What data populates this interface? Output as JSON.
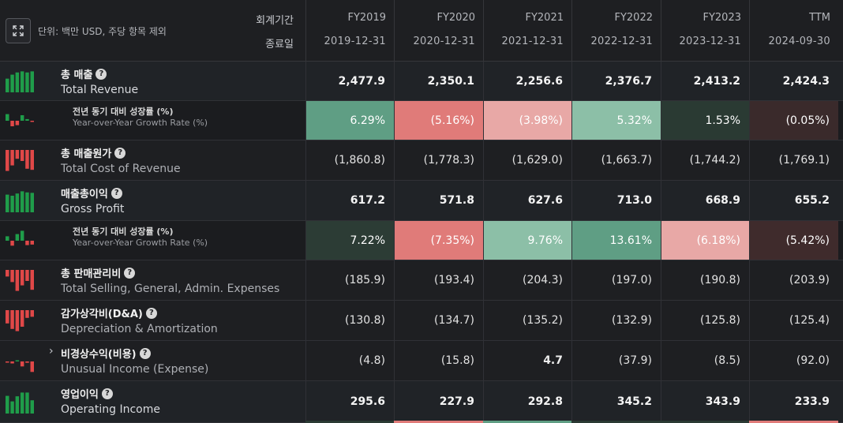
{
  "header": {
    "unit_note": "단위: 백만 USD, 주당 항목 제외",
    "period_label": "회계기간",
    "end_date_label": "종료일",
    "expand_icon": "expand-icon"
  },
  "columns": [
    {
      "fy": "FY2019",
      "date": "2019-12-31"
    },
    {
      "fy": "FY2020",
      "date": "2020-12-31"
    },
    {
      "fy": "FY2021",
      "date": "2021-12-31"
    },
    {
      "fy": "FY2022",
      "date": "2022-12-31"
    },
    {
      "fy": "FY2023",
      "date": "2023-12-31"
    },
    {
      "fy": "TTM",
      "date": "2024-09-30"
    }
  ],
  "rows": [
    {
      "ko": "총 매출",
      "en": "Total Revenue",
      "type": "main",
      "highlight": true,
      "help": true,
      "values": [
        "2,477.9",
        "2,350.1",
        "2,256.6",
        "2,376.7",
        "2,413.2",
        "2,424.3"
      ],
      "spark": [
        0.62,
        0.8,
        0.9,
        0.95,
        0.9,
        0.95
      ],
      "spark_color": "#1f9d4a"
    },
    {
      "ko": "전년 동기 대비 성장률 (%)",
      "en": "Year-over-Year Growth Rate (%)",
      "type": "sub",
      "values": [
        "6.29%",
        "(5.16%)",
        "(3.98%)",
        "5.32%",
        "1.53%",
        "(0.05%)"
      ],
      "bg": [
        "#5f9e84",
        "#e07b79",
        "#e8a8a6",
        "#8cbfa7",
        "#2a3a33",
        "#3a2a2b"
      ],
      "spark": [
        0.6,
        -0.5,
        -0.4,
        0.5,
        0.15,
        -0.05
      ],
      "spark_color": "mixed"
    },
    {
      "ko": "총 매출원가",
      "en": "Total Cost of Revenue",
      "type": "main",
      "highlight": false,
      "help": true,
      "values": [
        "(1,860.8)",
        "(1,778.3)",
        "(1,629.0)",
        "(1,663.7)",
        "(1,744.2)",
        "(1,769.1)"
      ],
      "spark": [
        -0.95,
        -0.7,
        -0.4,
        -0.5,
        -0.85,
        -0.9
      ],
      "spark_color": "#e04848"
    },
    {
      "ko": "매출총이익",
      "en": "Gross Profit",
      "type": "main",
      "highlight": true,
      "help": true,
      "values": [
        "617.2",
        "571.8",
        "627.6",
        "713.0",
        "668.9",
        "655.2"
      ],
      "spark": [
        0.8,
        0.75,
        0.85,
        0.95,
        0.9,
        0.88
      ],
      "spark_color": "#1f9d4a"
    },
    {
      "ko": "전년 동기 대비 성장률 (%)",
      "en": "Year-over-Year Growth Rate (%)",
      "type": "sub",
      "values": [
        "7.22%",
        "(7.35%)",
        "9.76%",
        "13.61%",
        "(6.18%)",
        "(5.42%)"
      ],
      "bg": [
        "#2c3c35",
        "#e07b79",
        "#8cbfa7",
        "#5f9e84",
        "#e8a8a6",
        "#3f2b2c"
      ],
      "spark": [
        0.4,
        -0.45,
        0.6,
        0.9,
        -0.4,
        -0.35
      ],
      "spark_color": "mixed"
    },
    {
      "ko": "총 판매관리비",
      "en": "Total Selling, General, Admin. Expenses",
      "type": "main",
      "highlight": false,
      "help": true,
      "values": [
        "(185.9)",
        "(193.4)",
        "(204.3)",
        "(197.0)",
        "(190.8)",
        "(203.9)"
      ],
      "spark": [
        -0.3,
        -0.55,
        -0.95,
        -0.7,
        -0.5,
        -0.9
      ],
      "spark_color": "#e04848"
    },
    {
      "ko": "감가상각비(D&A)",
      "en": "Depreciation & Amortization",
      "type": "main",
      "highlight": false,
      "help": true,
      "values": [
        "(130.8)",
        "(134.7)",
        "(135.2)",
        "(132.9)",
        "(125.8)",
        "(125.4)"
      ],
      "spark": [
        -0.6,
        -0.85,
        -0.95,
        -0.75,
        -0.35,
        -0.3
      ],
      "spark_color": "#e04848"
    },
    {
      "ko": "비경상수익(비용)",
      "en": "Unusual Income (Expense)",
      "type": "main",
      "highlight": false,
      "help": true,
      "expandable": true,
      "values": [
        "(4.8)",
        "(15.8)",
        "4.7",
        "(37.9)",
        "(8.5)",
        "(92.0)"
      ],
      "spark": [
        -0.08,
        -0.18,
        0.08,
        -0.45,
        -0.12,
        -0.95
      ],
      "spark_color": "mixed"
    },
    {
      "ko": "영업이익",
      "en": "Operating Income",
      "type": "main",
      "highlight": true,
      "help": true,
      "values": [
        "295.6",
        "227.9",
        "292.8",
        "345.2",
        "343.9",
        "233.9"
      ],
      "spark": [
        0.8,
        0.55,
        0.78,
        0.95,
        0.95,
        0.6
      ],
      "spark_color": "#1f9d4a"
    }
  ],
  "bottom_strip": [
    "#2a3a33",
    "#e07b79",
    "#5f9e84",
    "#2a3a33",
    "#2a3a33",
    "#e07b79"
  ]
}
